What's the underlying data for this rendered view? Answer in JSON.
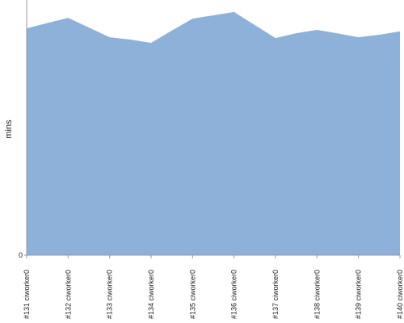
{
  "chart_data": {
    "type": "area",
    "y_label": "mins",
    "categories": [
      "#131 ciworker0",
      null,
      "#132 ciworker0",
      null,
      "#133 ciworker0",
      null,
      "#134 ciworker0",
      null,
      "#135 ciworker0",
      null,
      "#136 ciworker0",
      null,
      "#137 ciworker0",
      null,
      "#138 ciworker0",
      null,
      "#139 ciworker0",
      null,
      "#140 ciworker0"
    ],
    "values": [
      88.9,
      91.0,
      93.0,
      89.2,
      85.4,
      84.5,
      83.2,
      88.0,
      92.7,
      94.0,
      95.3,
      90.2,
      85.1,
      87.0,
      88.3,
      86.9,
      85.4,
      86.4,
      87.7
    ],
    "color": "#8eb1da",
    "ylim": [
      0,
      100
    ],
    "yticks": [
      0
    ]
  }
}
